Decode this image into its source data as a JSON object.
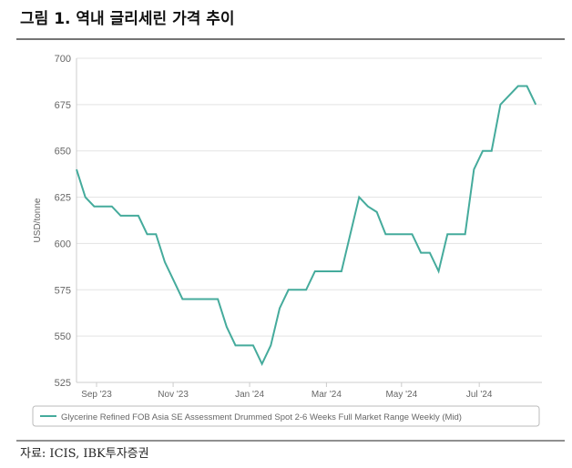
{
  "figure_title": "그림 1. 역내 글리세린 가격 추이",
  "source": "자료: ICIS, IBK투자증권",
  "chart_data": {
    "type": "line",
    "ylabel": "USD/tonne",
    "x": [
      0,
      1,
      2,
      3,
      4,
      5,
      6,
      7,
      8,
      9,
      10,
      11,
      12,
      13,
      14,
      15,
      16,
      17,
      18,
      19,
      20,
      21,
      22,
      23,
      24,
      25,
      26,
      27,
      28,
      29,
      30,
      31,
      32,
      33,
      34,
      35,
      36,
      37,
      38,
      39,
      40,
      41,
      42,
      43,
      44,
      45,
      46,
      47,
      48,
      49,
      50,
      51,
      52
    ],
    "series": [
      {
        "name": "Glycerine Refined FOB Asia SE Assessment Drummed Spot 2-6 Weeks Full Market Range Weekly (Mid)",
        "color": "#45ab9c",
        "values": [
          640,
          625,
          620,
          620,
          620,
          615,
          615,
          615,
          605,
          605,
          590,
          580,
          570,
          570,
          570,
          570,
          570,
          555,
          545,
          545,
          545,
          535,
          545,
          565,
          575,
          575,
          575,
          585,
          585,
          585,
          585,
          605,
          625,
          620,
          617,
          605,
          605,
          605,
          605,
          595,
          595,
          585,
          605,
          605,
          605,
          640,
          650,
          650,
          675,
          680,
          685,
          685,
          675
        ]
      }
    ],
    "xlim": [
      0,
      52.7
    ],
    "xticks": [
      {
        "value": 2.27,
        "label": "Sep '23"
      },
      {
        "value": 10.94,
        "label": "Nov '23"
      },
      {
        "value": 19.6,
        "label": "Jan '24"
      },
      {
        "value": 28.3,
        "label": "Mar '24"
      },
      {
        "value": 36.8,
        "label": "May '24"
      },
      {
        "value": 45.6,
        "label": "Jul '24"
      }
    ],
    "ylim": [
      525,
      700
    ],
    "yticks": [
      525,
      550,
      575,
      600,
      625,
      650,
      675,
      700
    ],
    "grid": true
  }
}
